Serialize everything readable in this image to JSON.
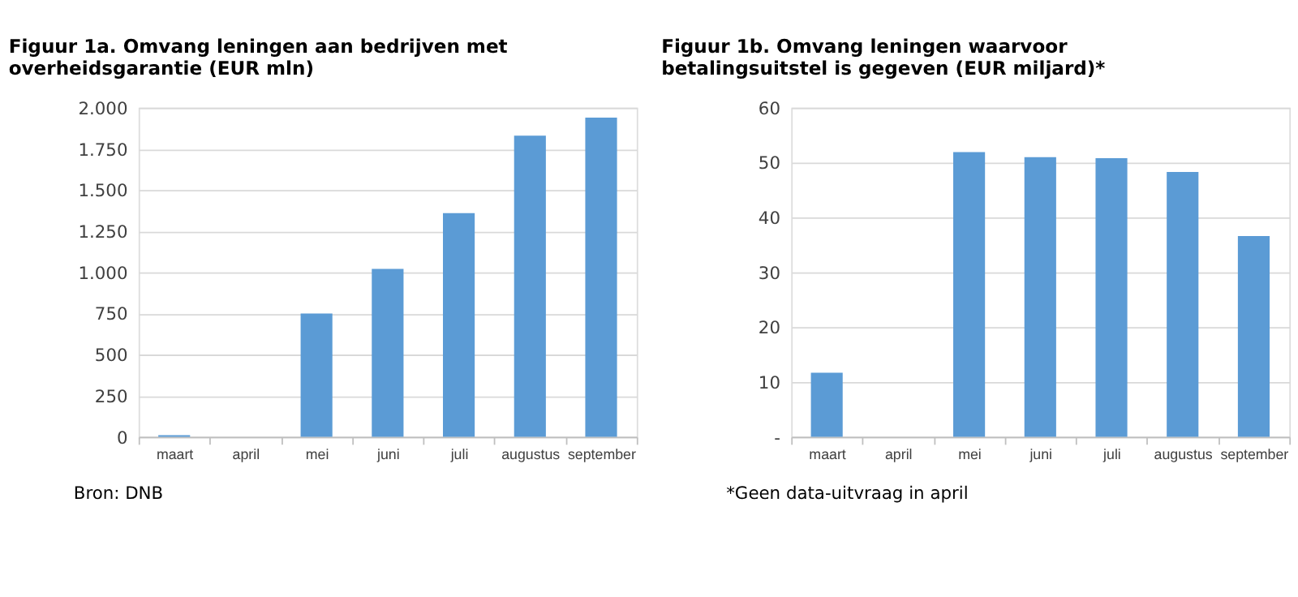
{
  "chart_data": [
    {
      "type": "bar",
      "title": "Figuur 1a. Omvang leningen aan bedrijven met\noverheidsgarantie (EUR mln)",
      "categories": [
        "maart",
        "april",
        "mei",
        "juni",
        "juli",
        "augustus",
        "september"
      ],
      "values": [
        10,
        null,
        750,
        1020,
        1360,
        1830,
        1940
      ],
      "color": "#5b9bd5",
      "ylim": [
        0,
        2000
      ],
      "yticks": [
        0,
        250,
        500,
        750,
        {
          "value": 1000,
          "label": "1.000"
        },
        {
          "value": 1250,
          "label": "1.250"
        },
        {
          "value": 1500,
          "label": "1.500"
        },
        {
          "value": 1750,
          "label": "1.750"
        },
        {
          "value": 2000,
          "label": "2.000"
        }
      ],
      "grid": "y",
      "annotations": [
        "Bron: DNB"
      ]
    },
    {
      "type": "bar",
      "title": "Figuur 1b. Omvang leningen waarvoor\nbetalingsuitstel is gegeven (EUR miljard)*",
      "categories": [
        "maart",
        "april",
        "mei",
        "juni",
        "juli",
        "augustus",
        "september"
      ],
      "values": [
        11.7,
        null,
        51.9,
        51.0,
        50.8,
        48.3,
        36.6
      ],
      "color": "#5b9bd5",
      "ylim": [
        0,
        60
      ],
      "yticks": [
        {
          "value": 0,
          "label": "-"
        },
        10,
        20,
        30,
        40,
        50,
        60
      ],
      "grid": "y",
      "annotations": [
        "*Geen data-uitvraag in april"
      ]
    }
  ]
}
